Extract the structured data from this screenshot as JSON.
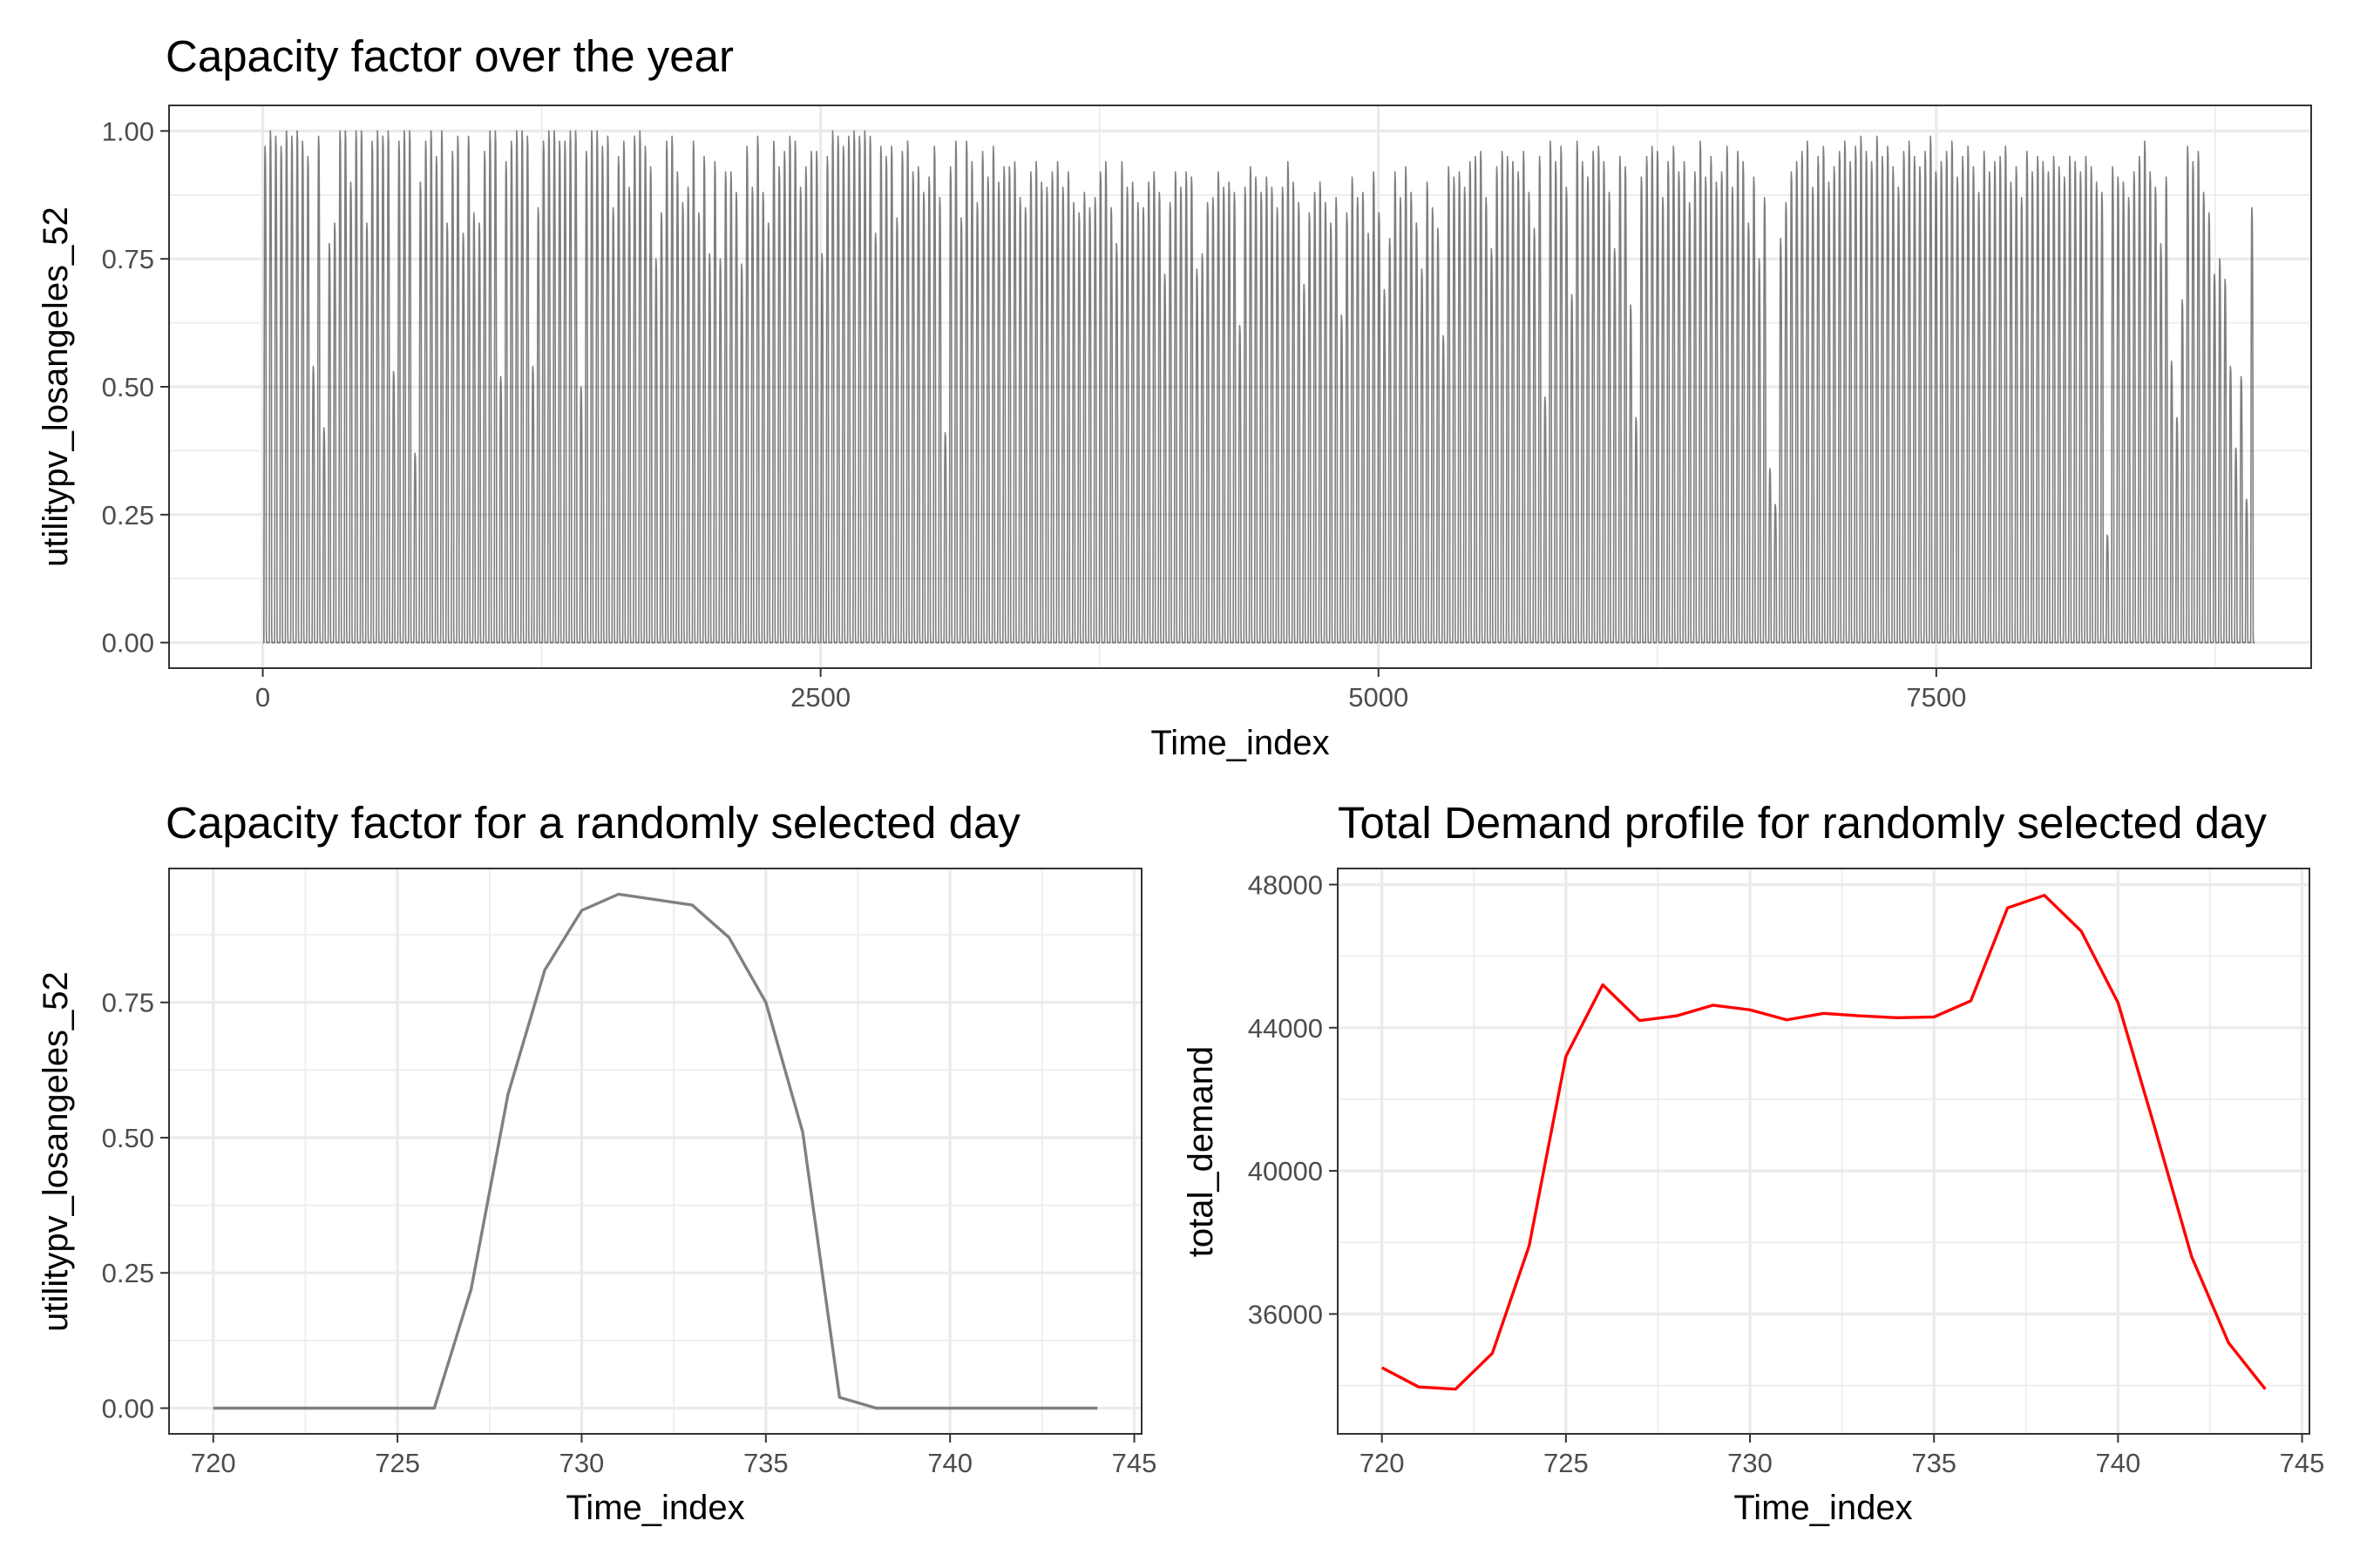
{
  "chart_data": [
    {
      "type": "line",
      "title": "Capacity factor over the year",
      "xlabel": "Time_index",
      "ylabel": "utilitypv_losangeles_52",
      "xlim": [
        -420,
        9180
      ],
      "ylim": [
        -0.05,
        1.05
      ],
      "x_ticks": [
        0,
        2500,
        5000,
        7500
      ],
      "x_tick_labels": [
        "0",
        "2500",
        "5000",
        "7500"
      ],
      "y_ticks": [
        0,
        0.25,
        0.5,
        0.75,
        1.0
      ],
      "y_tick_labels": [
        "0.00",
        "0.25",
        "0.50",
        "0.75",
        "1.00"
      ],
      "grid": true,
      "series": [
        {
          "color": "#000000",
          "opacity": 0.5,
          "x_start": 0,
          "x_step": 24,
          "hours_per_day": 24,
          "daily_shape": [
            0,
            0,
            0,
            0,
            0,
            0,
            0.22,
            0.58,
            0.81,
            0.92,
            0.95,
            0.94,
            0.93,
            0.87,
            0.75,
            0.51,
            0.02,
            0,
            0,
            0,
            0,
            0,
            0,
            0
          ],
          "daily_peaks": [
            0.97,
            1.0,
            0.99,
            0.97,
            1.0,
            0.99,
            1.0,
            0.98,
            0.95,
            0.54,
            0.99,
            0.42,
            0.78,
            0.82,
            1.0,
            1.0,
            0.9,
            1.0,
            1.0,
            0.82,
            0.98,
            1.0,
            0.99,
            1.0,
            0.53,
            0.98,
            1.0,
            1.0,
            0.37,
            0.9,
            0.98,
            1.0,
            0.95,
            1.0,
            0.82,
            0.96,
            0.99,
            0.8,
            0.99,
            0.84,
            0.82,
            0.96,
            1.0,
            1.0,
            0.52,
            0.94,
            0.98,
            1.0,
            1.0,
            0.99,
            0.54,
            0.85,
            0.98,
            1.0,
            1.0,
            0.98,
            0.98,
            1.0,
            1.0,
            0.5,
            0.96,
            1.0,
            1.0,
            0.97,
            0.99,
            0.85,
            0.95,
            0.98,
            0.89,
            0.99,
            1.0,
            0.97,
            0.93,
            0.75,
            0.84,
            0.98,
            0.99,
            0.92,
            0.86,
            0.89,
            0.98,
            0.84,
            0.95,
            0.76,
            0.94,
            0.75,
            0.92,
            0.92,
            0.88,
            0.74,
            0.97,
            0.89,
            0.99,
            0.88,
            0.82,
            0.98,
            0.93,
            0.96,
            0.99,
            0.98,
            0.89,
            0.93,
            0.96,
            0.96,
            0.76,
            0.95,
            1.0,
            0.99,
            0.97,
            0.99,
            1.0,
            0.99,
            1.0,
            0.99,
            0.8,
            0.97,
            0.95,
            0.97,
            0.83,
            0.96,
            0.98,
            0.92,
            0.93,
            0.88,
            0.91,
            0.97,
            0.87,
            0.41,
            0.93,
            0.98,
            0.83,
            0.98,
            0.94,
            0.86,
            0.96,
            0.91,
            0.97,
            0.9,
            0.93,
            0.93,
            0.94,
            0.87,
            0.85,
            0.92,
            0.94,
            0.9,
            0.89,
            0.92,
            0.94,
            0.89,
            0.92,
            0.86,
            0.84,
            0.88,
            0.85,
            0.87,
            0.92,
            0.94,
            0.85,
            0.78,
            0.94,
            0.89,
            0.9,
            0.86,
            0.85,
            0.9,
            0.92,
            0.88,
            0.72,
            0.86,
            0.92,
            0.89,
            0.92,
            0.91,
            0.73,
            0.76,
            0.86,
            0.87,
            0.92,
            0.89,
            0.9,
            0.88,
            0.62,
            0.89,
            0.93,
            0.91,
            0.88,
            0.91,
            0.89,
            0.85,
            0.89,
            0.94,
            0.9,
            0.86,
            0.7,
            0.84,
            0.88,
            0.9,
            0.86,
            0.82,
            0.87,
            0.64,
            0.84,
            0.91,
            0.87,
            0.88,
            0.8,
            0.92,
            0.84,
            0.69,
            0.79,
            0.92,
            0.87,
            0.93,
            0.88,
            0.82,
            0.73,
            0.9,
            0.85,
            0.81,
            0.6,
            0.93,
            0.91,
            0.92,
            0.89,
            0.94,
            0.95,
            0.96,
            0.87,
            0.77,
            0.93,
            0.96,
            0.95,
            0.94,
            0.92,
            0.96,
            0.88,
            0.81,
            0.95,
            0.48,
            0.98,
            0.94,
            0.97,
            0.89,
            0.68,
            0.98,
            0.94,
            0.91,
            0.96,
            0.97,
            0.94,
            0.88,
            0.77,
            0.95,
            0.93,
            0.66,
            0.44,
            0.91,
            0.95,
            0.97,
            0.96,
            0.87,
            0.94,
            0.97,
            0.92,
            0.94,
            0.86,
            0.92,
            0.98,
            0.91,
            0.95,
            0.9,
            0.92,
            0.97,
            0.89,
            0.96,
            0.94,
            0.82,
            0.91,
            0.75,
            0.87,
            0.34,
            0.27,
            0.79,
            0.86,
            0.92,
            0.94,
            0.96,
            0.98,
            0.89,
            0.95,
            0.97,
            0.9,
            0.93,
            0.96,
            0.98,
            0.94,
            0.97,
            0.99,
            0.96,
            0.94,
            0.99,
            0.95,
            0.97,
            0.93,
            0.89,
            0.96,
            0.98,
            0.95,
            0.93,
            0.96,
            0.99,
            0.92,
            0.94,
            0.96,
            0.98,
            0.91,
            0.95,
            0.97,
            0.93,
            0.88,
            0.96,
            0.92,
            0.94,
            0.95,
            0.97,
            0.9,
            0.93,
            0.87,
            0.96,
            0.92,
            0.95,
            0.94,
            0.92,
            0.95,
            0.93,
            0.91,
            0.95,
            0.94,
            0.92,
            0.95,
            0.93,
            0.9,
            0.88,
            0.21,
            0.93,
            0.91,
            0.9,
            0.87,
            0.92,
            0.95,
            0.98,
            0.92,
            0.89,
            0.78,
            0.91,
            0.55,
            0.44,
            0.67,
            0.97,
            0.94,
            0.96,
            0.88,
            0.84,
            0.72,
            0.75,
            0.71,
            0.54,
            0.38,
            0.52,
            0.28,
            0.85
          ]
        }
      ]
    },
    {
      "type": "line",
      "title": "Capacity factor for a randomly selected day",
      "xlabel": "Time_index",
      "ylabel": "utilitypv_losangeles_52",
      "xlim": [
        718.8,
        745.2
      ],
      "ylim": [
        -0.0475,
        0.9975
      ],
      "x_ticks": [
        720,
        725,
        730,
        735,
        740,
        745
      ],
      "x_tick_labels": [
        "720",
        "725",
        "730",
        "735",
        "740",
        "745"
      ],
      "y_ticks": [
        0,
        0.25,
        0.5,
        0.75
      ],
      "y_tick_labels": [
        "0.00",
        "0.25",
        "0.50",
        "0.75"
      ],
      "grid": true,
      "x": [
        720,
        721,
        722,
        723,
        724,
        725,
        726,
        727,
        728,
        729,
        730,
        731,
        732,
        733,
        734,
        735,
        736,
        737,
        738,
        739,
        740,
        741,
        742,
        743,
        744
      ],
      "series": [
        {
          "color": "#808080",
          "values": [
            0,
            0,
            0,
            0,
            0,
            0,
            0,
            0.22,
            0.58,
            0.81,
            0.92,
            0.95,
            0.94,
            0.93,
            0.87,
            0.75,
            0.51,
            0.02,
            0,
            0,
            0,
            0,
            0,
            0,
            0
          ]
        }
      ]
    },
    {
      "type": "line",
      "title": "Total Demand profile for randomly selected day",
      "xlabel": "Time_index",
      "ylabel": "total_demand",
      "xlim": [
        718.8,
        745.2
      ],
      "ylim": [
        32650,
        48450
      ],
      "x_ticks": [
        720,
        725,
        730,
        735,
        740,
        745
      ],
      "x_tick_labels": [
        "720",
        "725",
        "730",
        "735",
        "740",
        "745"
      ],
      "y_ticks": [
        36000,
        40000,
        44000,
        48000
      ],
      "y_tick_labels": [
        "36000",
        "40000",
        "44000",
        "48000"
      ],
      "grid": true,
      "x": [
        720,
        721,
        722,
        723,
        724,
        725,
        726,
        727,
        728,
        729,
        730,
        731,
        732,
        733,
        734,
        735,
        736,
        737,
        738,
        739,
        740,
        741,
        742,
        743,
        744
      ],
      "series": [
        {
          "color": "#ff0000",
          "values": [
            34500,
            33960,
            33900,
            34900,
            37900,
            43200,
            45200,
            44200,
            44330,
            44630,
            44500,
            44220,
            44400,
            44330,
            44280,
            44300,
            44750,
            47350,
            47700,
            46700,
            44700,
            41200,
            37600,
            35200,
            33900
          ]
        }
      ]
    }
  ]
}
